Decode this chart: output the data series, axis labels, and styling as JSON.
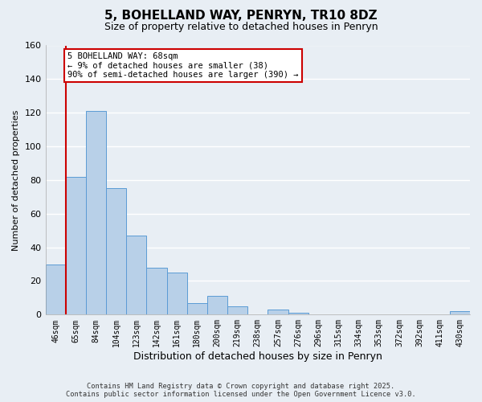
{
  "title": "5, BOHELLAND WAY, PENRYN, TR10 8DZ",
  "subtitle": "Size of property relative to detached houses in Penryn",
  "xlabel": "Distribution of detached houses by size in Penryn",
  "ylabel": "Number of detached properties",
  "bar_labels": [
    "46sqm",
    "65sqm",
    "84sqm",
    "104sqm",
    "123sqm",
    "142sqm",
    "161sqm",
    "180sqm",
    "200sqm",
    "219sqm",
    "238sqm",
    "257sqm",
    "276sqm",
    "296sqm",
    "315sqm",
    "334sqm",
    "353sqm",
    "372sqm",
    "392sqm",
    "411sqm",
    "430sqm"
  ],
  "bar_values": [
    30,
    82,
    121,
    75,
    47,
    28,
    25,
    7,
    11,
    5,
    0,
    3,
    1,
    0,
    0,
    0,
    0,
    0,
    0,
    0,
    2
  ],
  "bar_color": "#b8d0e8",
  "bar_edge_color": "#5b9bd5",
  "vline_x_index": 1,
  "vline_color": "#cc0000",
  "ylim": [
    0,
    160
  ],
  "yticks": [
    0,
    20,
    40,
    60,
    80,
    100,
    120,
    140,
    160
  ],
  "annotation_title": "5 BOHELLAND WAY: 68sqm",
  "annotation_line1": "← 9% of detached houses are smaller (38)",
  "annotation_line2": "90% of semi-detached houses are larger (390) →",
  "annotation_box_color": "#ffffff",
  "annotation_box_edge": "#cc0000",
  "footer_line1": "Contains HM Land Registry data © Crown copyright and database right 2025.",
  "footer_line2": "Contains public sector information licensed under the Open Government Licence v3.0.",
  "background_color": "#e8eef4",
  "grid_color": "#c8d8e8"
}
